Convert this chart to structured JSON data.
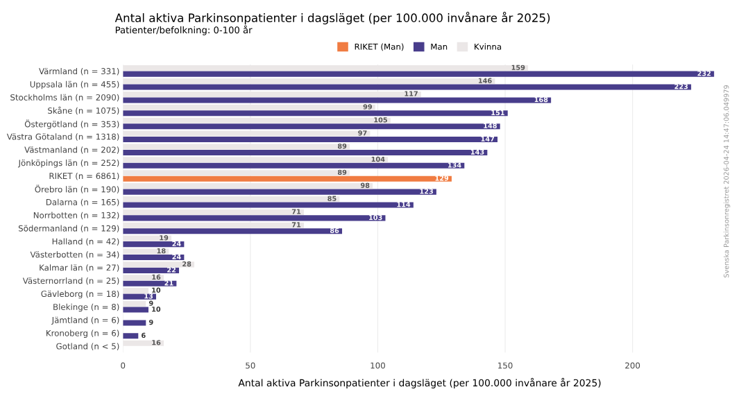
{
  "chart_data": {
    "type": "bar",
    "orientation": "horizontal",
    "title": "Antal aktiva Parkinsonpatienter i dagsläget (per 100.000 invånare år 2025)",
    "subtitle": "Patienter/befolkning: 0-100 år",
    "xlabel": "Antal aktiva Parkinsonpatienter i dagsläget (per 100.000 invånare år 2025)",
    "categories": [
      "Värmland (n = 331)",
      "Uppsala län (n = 455)",
      "Stockholms län (n = 2090)",
      "Skåne (n = 1075)",
      "Östergötland (n = 353)",
      "Västra Götaland (n = 1318)",
      "Västmanland (n = 202)",
      "Jönköpings län (n = 252)",
      "RIKET (n = 6861)",
      "Örebro län (n = 190)",
      "Dalarna (n = 165)",
      "Norrbotten (n = 132)",
      "Södermanland (n = 129)",
      "Halland (n = 42)",
      "Västerbotten (n = 34)",
      "Kalmar län (n = 27)",
      "Västernorrland (n = 25)",
      "Gävleborg (n = 18)",
      "Blekinge (n = 8)",
      "Jämtland (n = 6)",
      "Kronoberg (n = 6)",
      "Gotland (n < 5)"
    ],
    "series": [
      {
        "name": "RIKET (Man)",
        "color": "#f07c42",
        "values": [
          null,
          null,
          null,
          null,
          null,
          null,
          null,
          null,
          129,
          null,
          null,
          null,
          null,
          null,
          null,
          null,
          null,
          null,
          null,
          null,
          null,
          null
        ]
      },
      {
        "name": "Man",
        "color": "#483d8b",
        "values": [
          232,
          223,
          168,
          151,
          148,
          147,
          143,
          134,
          null,
          123,
          114,
          103,
          86,
          24,
          24,
          22,
          21,
          13,
          10,
          9,
          6,
          null
        ]
      },
      {
        "name": "Kvinna",
        "color": "#ebe7e7",
        "values": [
          159,
          146,
          117,
          99,
          105,
          97,
          89,
          104,
          89,
          98,
          85,
          71,
          71,
          19,
          18,
          28,
          16,
          10,
          9,
          null,
          null,
          16
        ]
      }
    ],
    "xlim": [
      0,
      233
    ],
    "xticks": [
      0,
      50,
      100,
      150,
      200
    ],
    "grid": "x",
    "legend": "top",
    "data_labels": true,
    "annotations": [
      "Svenska Parkinsonregistret 2026-04-24 14:47:06.049979"
    ]
  }
}
